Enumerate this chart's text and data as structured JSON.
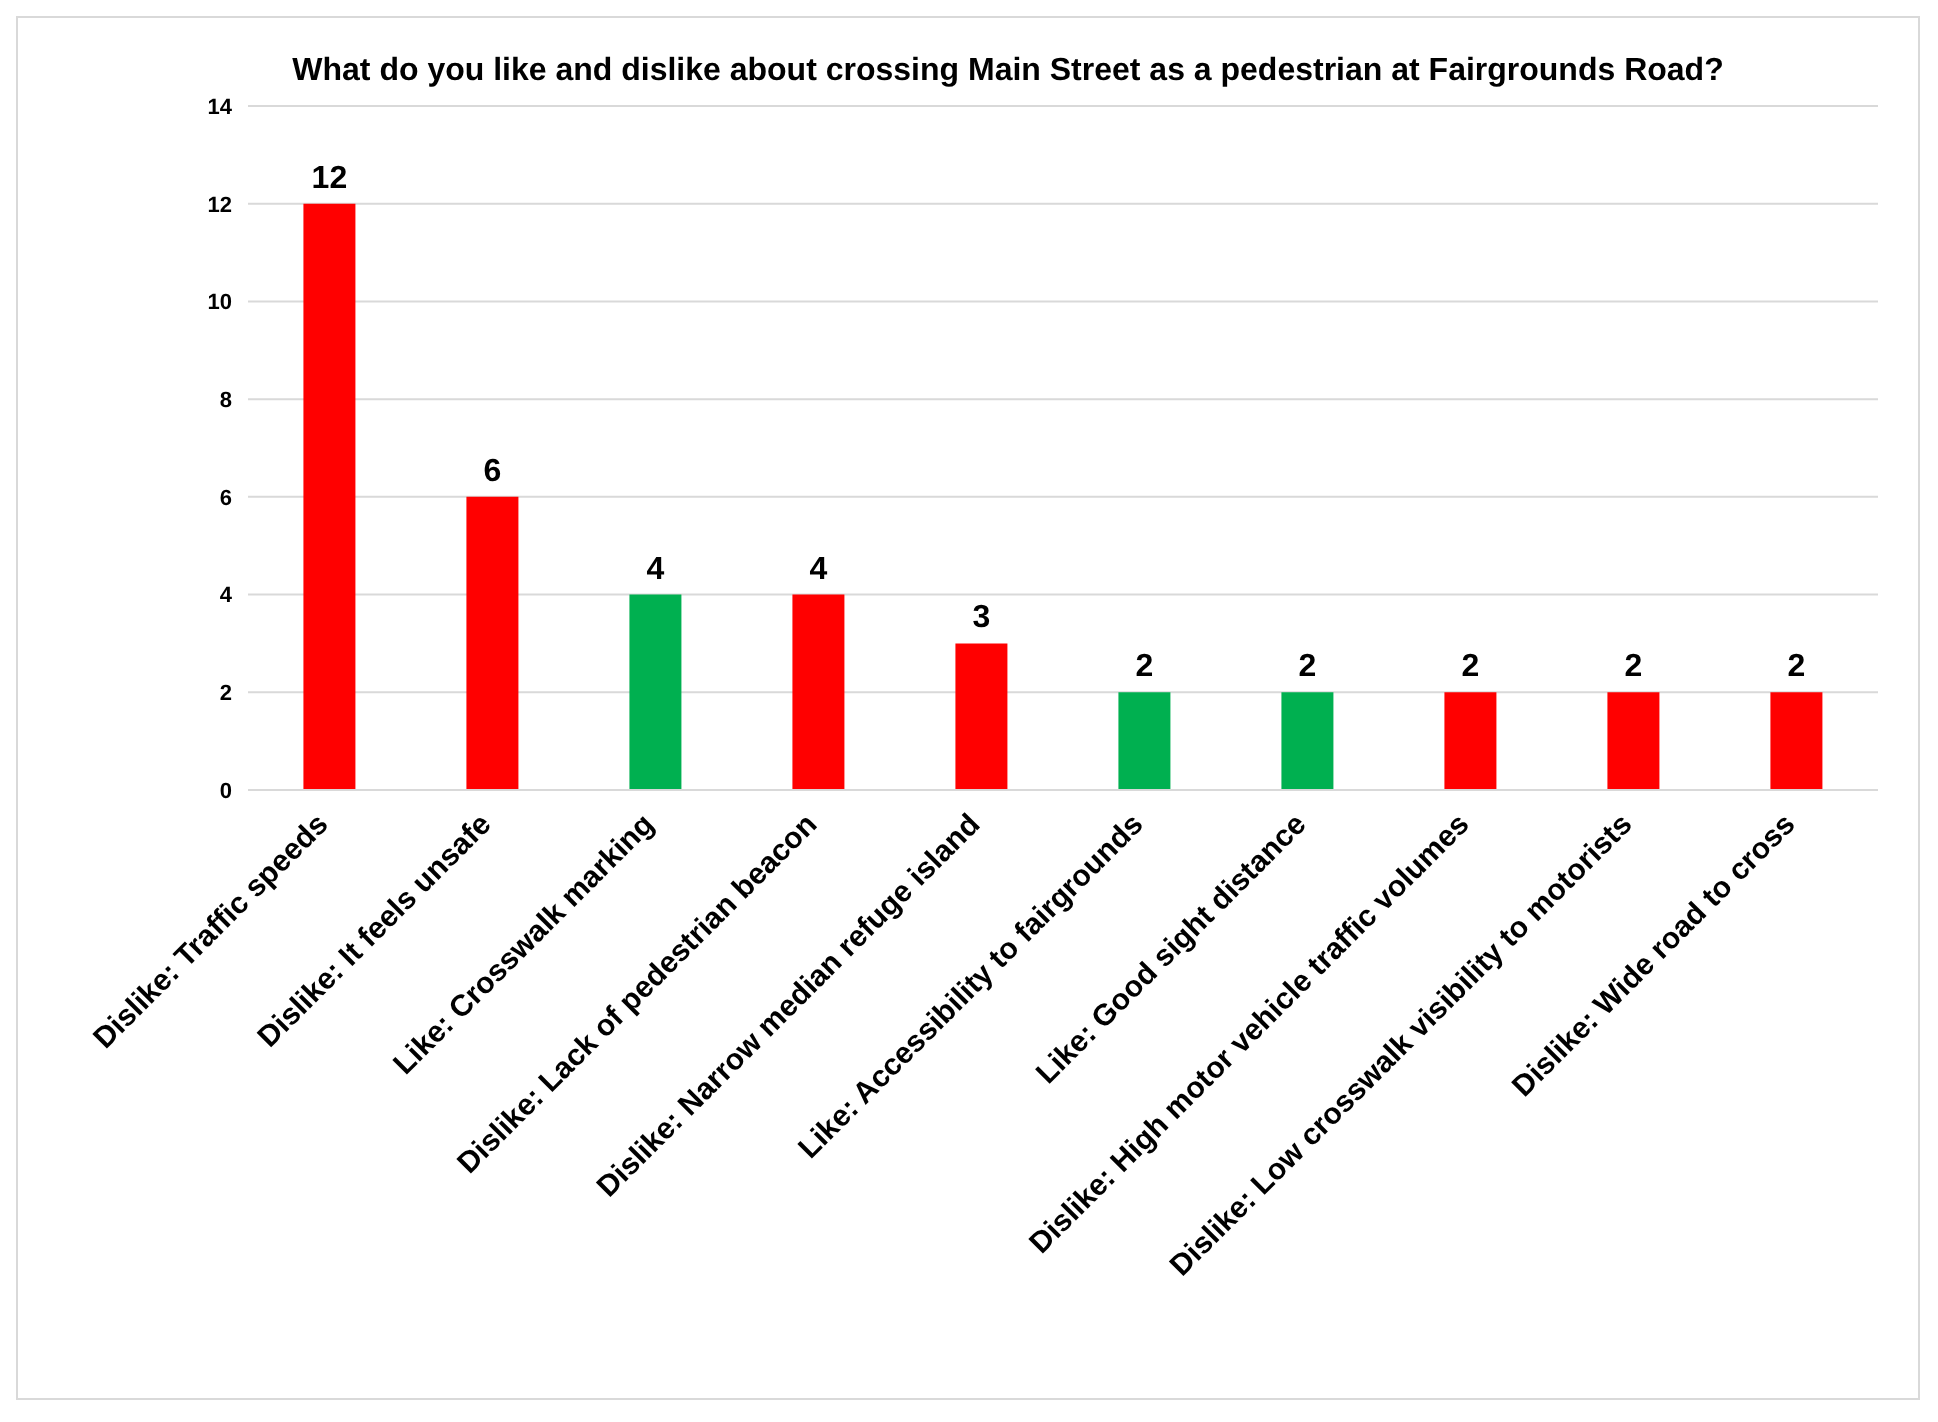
{
  "chart_data": {
    "type": "bar",
    "title": "What do you like and dislike about crossing Main Street as a pedestrian at Fairgrounds Road?",
    "categories": [
      "Dislike: Traffic speeds",
      "Dislike: It feels unsafe",
      "Like: Crosswalk marking",
      "Dislike: Lack of pedestrian beacon",
      "Dislike: Narrow median refuge island",
      "Like: Accessibility to fairgrounds",
      "Like: Good sight distance",
      "Dislike: High motor vehicle traffic volumes",
      "Dislike: Low crosswalk visibility to motorists",
      "Dislike: Wide road to cross"
    ],
    "values": [
      12,
      6,
      4,
      4,
      3,
      2,
      2,
      2,
      2,
      2
    ],
    "colors": [
      "#ff0000",
      "#ff0000",
      "#00b050",
      "#ff0000",
      "#ff0000",
      "#00b050",
      "#00b050",
      "#ff0000",
      "#ff0000",
      "#ff0000"
    ],
    "ylim": [
      0,
      14
    ],
    "yticks": [
      0,
      2,
      4,
      6,
      8,
      10,
      12,
      14
    ],
    "grid": "y",
    "data_labels": true
  }
}
